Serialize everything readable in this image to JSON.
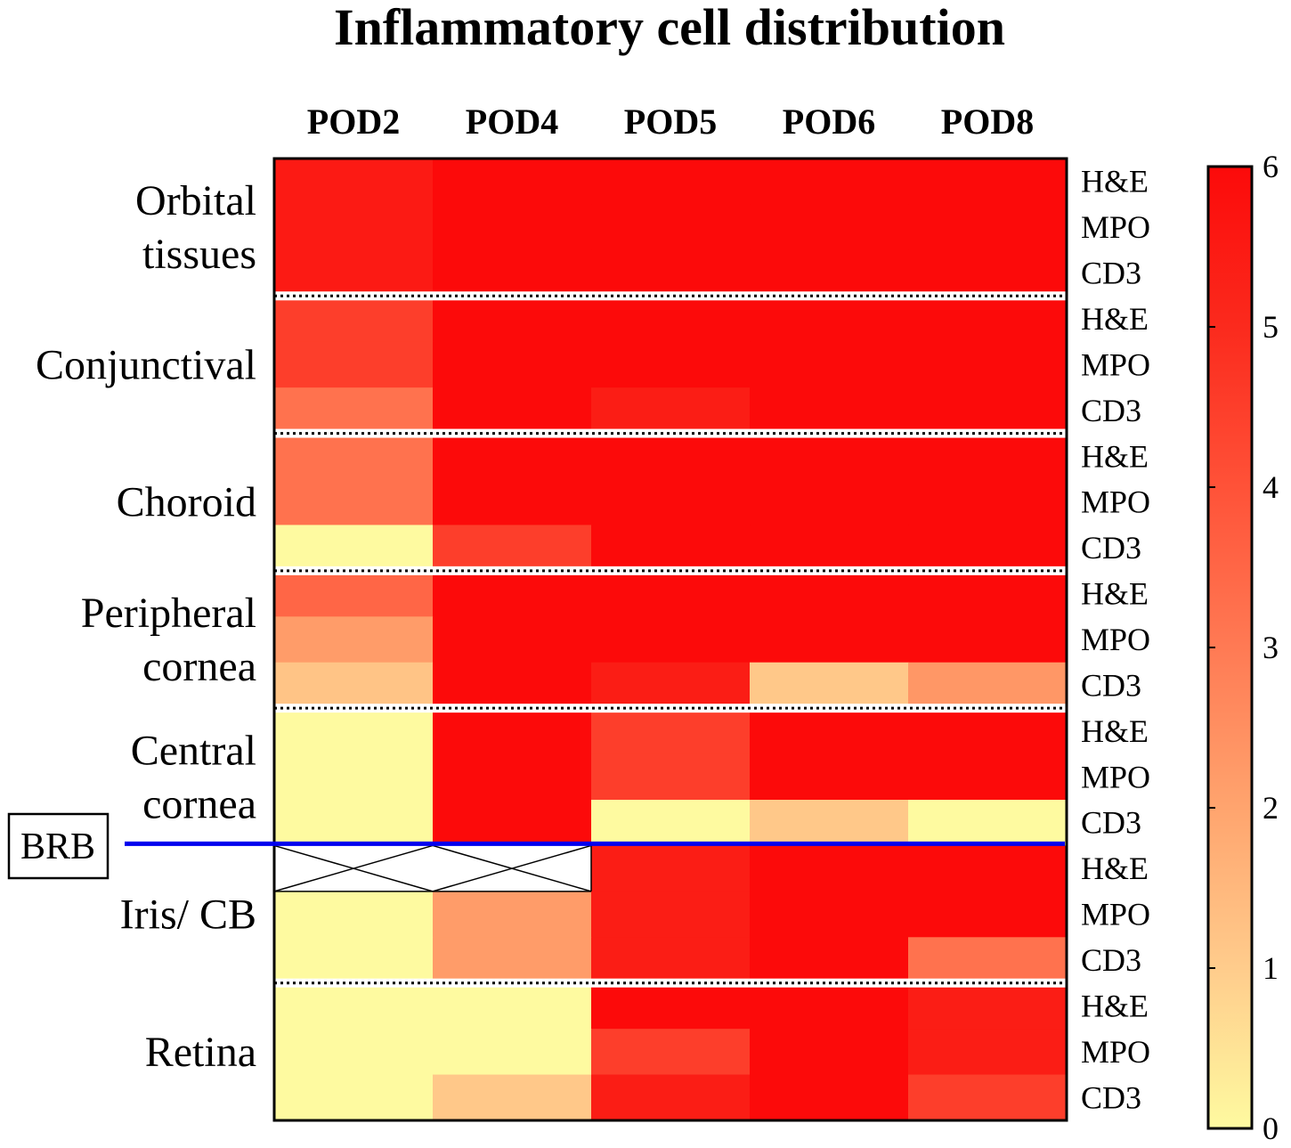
{
  "chart_data": {
    "type": "heatmap",
    "title": "Inflammatory cell distribution",
    "columns": [
      "POD2",
      "POD4",
      "POD5",
      "POD6",
      "POD8"
    ],
    "stains": [
      "H&E",
      "MPO",
      "CD3"
    ],
    "groups": [
      {
        "label_lines": [
          "Orbital",
          "tissues"
        ],
        "rows": [
          {
            "stain": "H&E",
            "values": [
              5.5,
              6,
              6,
              6,
              6
            ]
          },
          {
            "stain": "MPO",
            "values": [
              5.5,
              6,
              6,
              6,
              6
            ]
          },
          {
            "stain": "CD3",
            "values": [
              5.5,
              6,
              6,
              6,
              6
            ]
          }
        ]
      },
      {
        "label_lines": [
          "Conjunctival"
        ],
        "rows": [
          {
            "stain": "H&E",
            "values": [
              4.5,
              6,
              6,
              6,
              6
            ]
          },
          {
            "stain": "MPO",
            "values": [
              4.5,
              6,
              6,
              6,
              6
            ]
          },
          {
            "stain": "CD3",
            "values": [
              3.2,
              6,
              5.4,
              6,
              6
            ]
          }
        ]
      },
      {
        "label_lines": [
          "Choroid"
        ],
        "rows": [
          {
            "stain": "H&E",
            "values": [
              3.2,
              6,
              6,
              6,
              6
            ]
          },
          {
            "stain": "MPO",
            "values": [
              3.2,
              6,
              6,
              6,
              6
            ]
          },
          {
            "stain": "CD3",
            "values": [
              0,
              4.5,
              6,
              6,
              6
            ]
          }
        ]
      },
      {
        "label_lines": [
          "Peripheral",
          "cornea"
        ],
        "rows": [
          {
            "stain": "H&E",
            "values": [
              3.5,
              6,
              6,
              6,
              6
            ]
          },
          {
            "stain": "MPO",
            "values": [
              2.2,
              6,
              6,
              6,
              6
            ]
          },
          {
            "stain": "CD3",
            "values": [
              1.2,
              6,
              5.4,
              1.1,
              2.3
            ]
          }
        ]
      },
      {
        "label_lines": [
          "Central",
          "cornea"
        ],
        "rows": [
          {
            "stain": "H&E",
            "values": [
              0,
              6,
              4.5,
              6,
              6
            ]
          },
          {
            "stain": "MPO",
            "values": [
              0,
              6,
              4.5,
              6,
              6
            ]
          },
          {
            "stain": "CD3",
            "values": [
              0,
              6,
              0,
              1.1,
              0
            ]
          }
        ]
      },
      {
        "label_lines": [
          "Iris/ CB"
        ],
        "rows": [
          {
            "stain": "H&E",
            "values": [
              null,
              null,
              5.4,
              6,
              6
            ]
          },
          {
            "stain": "MPO",
            "values": [
              0,
              2.2,
              5.4,
              6,
              6
            ]
          },
          {
            "stain": "CD3",
            "values": [
              0,
              2.2,
              5.4,
              6,
              3.2
            ]
          }
        ]
      },
      {
        "label_lines": [
          "Retina"
        ],
        "rows": [
          {
            "stain": "H&E",
            "values": [
              0,
              0,
              6,
              6,
              5.4
            ]
          },
          {
            "stain": "MPO",
            "values": [
              0,
              0,
              4.5,
              6,
              5.4
            ]
          },
          {
            "stain": "CD3",
            "values": [
              0,
              1.1,
              5.4,
              6,
              4.5
            ]
          }
        ]
      }
    ],
    "missing_marker": "cross",
    "barrier": {
      "label": "BRB",
      "after_group": 4,
      "color": "#0000ee"
    },
    "colorbar": {
      "min": 0,
      "max": 6,
      "ticks": [
        "0",
        "1",
        "2",
        "3",
        "4",
        "5",
        "6"
      ],
      "colors": [
        "#fefaa0",
        "#ffcc8c",
        "#ffa46e",
        "#ff7a54",
        "#ff5238",
        "#fb2a1d",
        "#fc0a0a"
      ]
    }
  }
}
